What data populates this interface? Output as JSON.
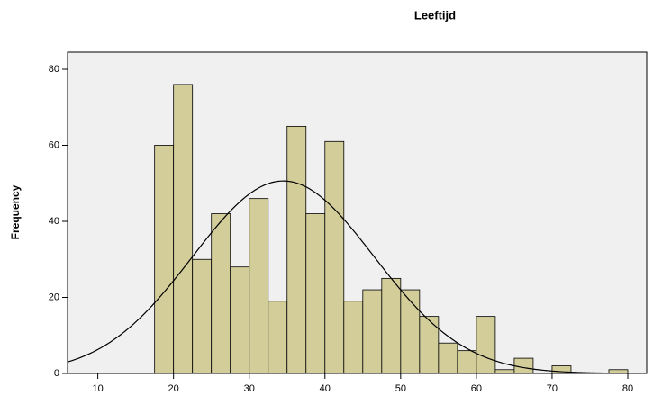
{
  "chart_data": {
    "type": "histogram",
    "title": "Leeftijd",
    "y_label": "Frequency",
    "bins": [
      17.5,
      20,
      22.5,
      25,
      27.5,
      30,
      32.5,
      35,
      37.5,
      40,
      42.5,
      45,
      47.5,
      50,
      52.5,
      55,
      57.5,
      60,
      62.5,
      65,
      67.5,
      70,
      72.5,
      75,
      77.5,
      80
    ],
    "values": [
      60,
      76,
      30,
      42,
      28,
      46,
      19,
      65,
      42,
      61,
      19,
      22,
      25,
      22,
      15,
      8,
      6,
      15,
      1,
      4,
      0,
      2,
      0,
      0,
      1
    ],
    "color": "#d3cd9a",
    "curve": {
      "mean": 34.5,
      "sd": 12.0
    },
    "xlim": [
      6,
      82.5
    ],
    "xticks": [
      10,
      20,
      30,
      40,
      50,
      60,
      70,
      80
    ],
    "ylim": [
      0,
      84.5
    ],
    "yticks": [
      0,
      20,
      40,
      60,
      80
    ]
  }
}
